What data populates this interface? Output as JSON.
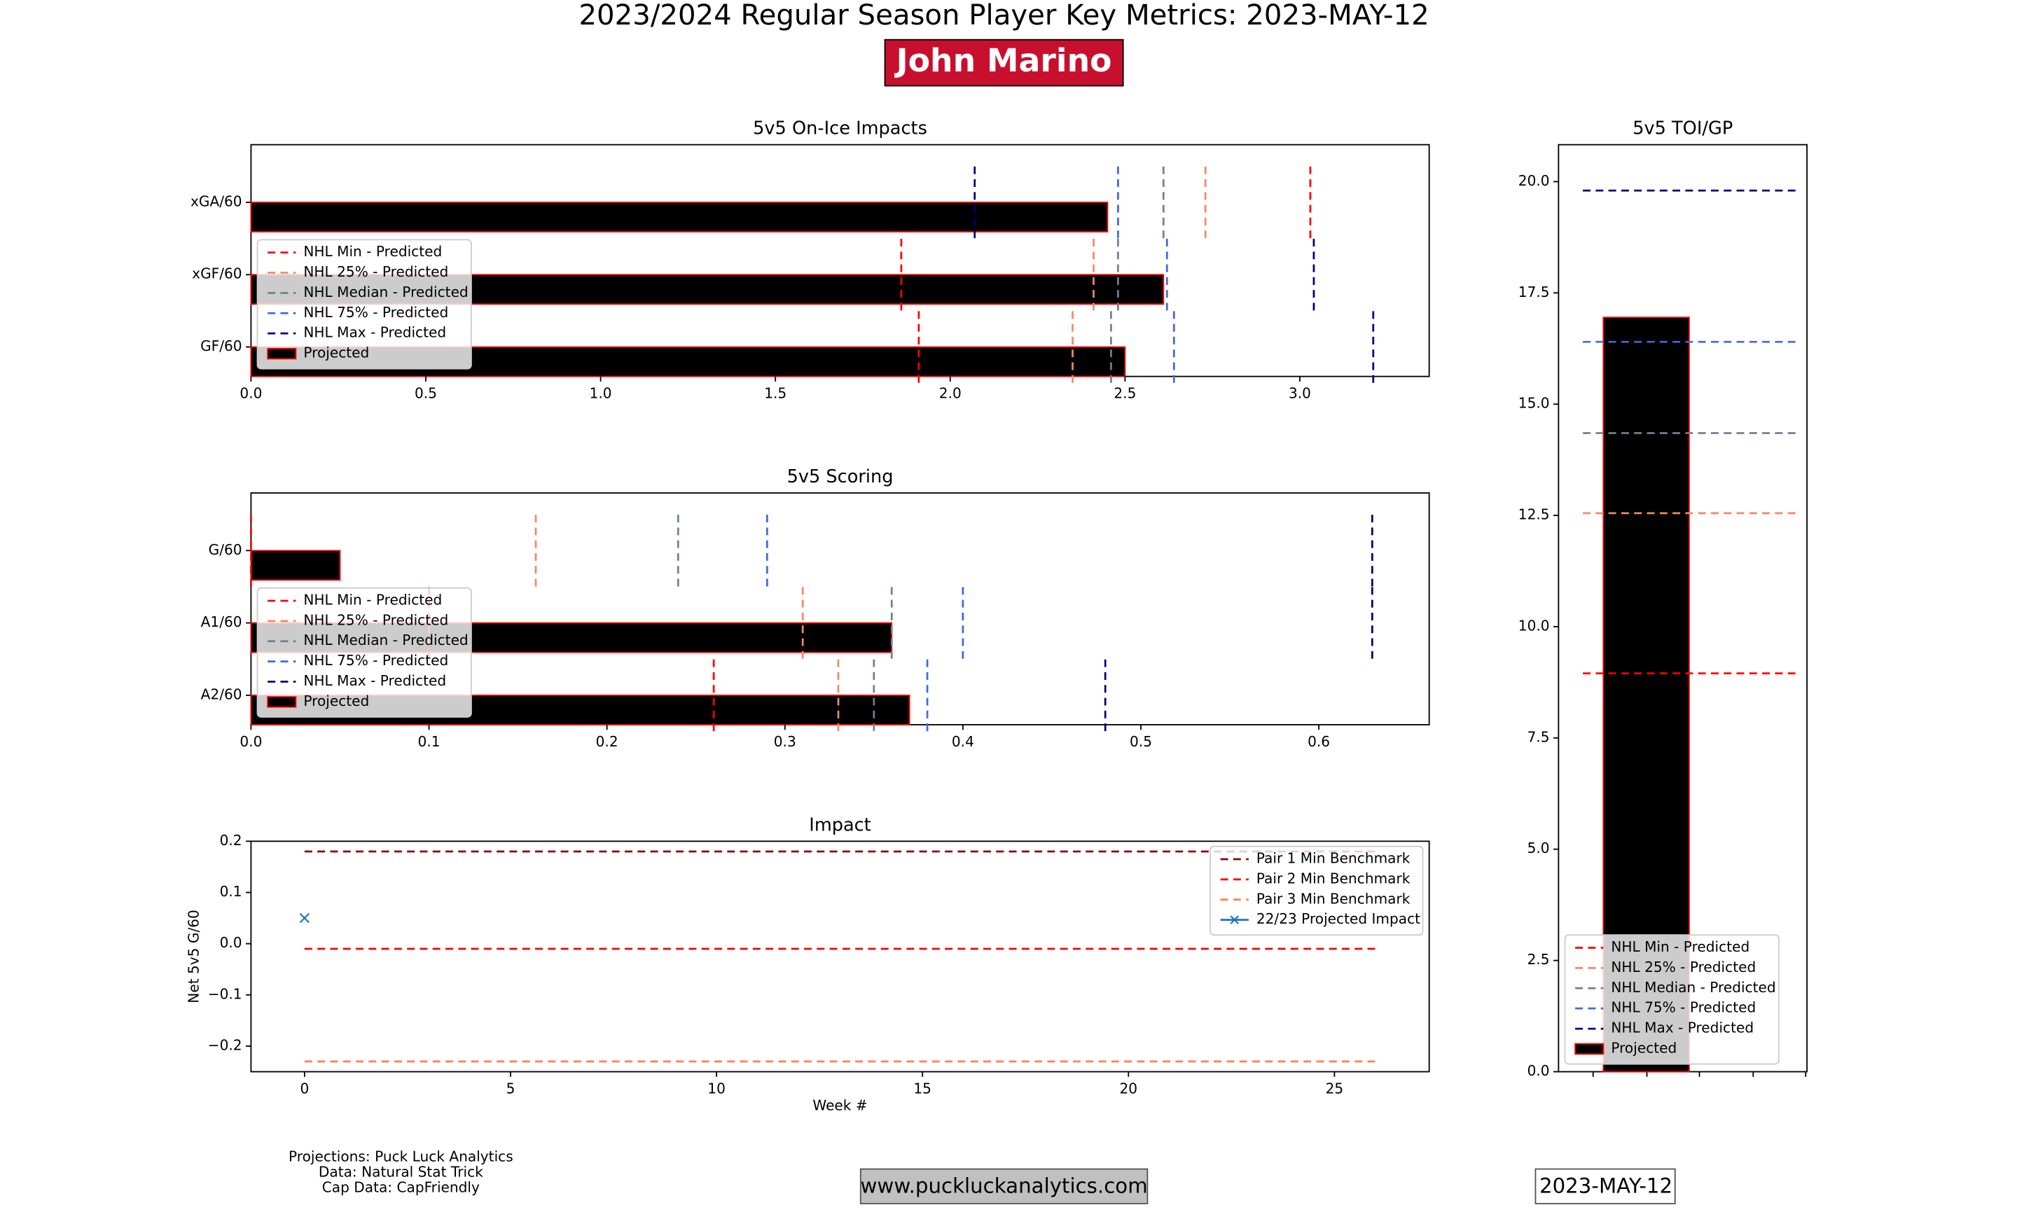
{
  "header": {
    "title": "2023/2024 Regular Season Player Key Metrics: 2023-MAY-12",
    "player": "John Marino"
  },
  "footer": {
    "credits": [
      "Projections: Puck Luck Analytics",
      "Data: Natural Stat Trick",
      "Cap Data: CapFriendly"
    ],
    "website": "www.puckluckanalytics.com",
    "date": "2023-MAY-12"
  },
  "chart_data": [
    {
      "type": "hbar",
      "title": "5v5 On-Ice Impacts",
      "categories": [
        "xGA/60",
        "xGF/60",
        "GF/60"
      ],
      "xlim": [
        0,
        3.37
      ],
      "xticks": [
        {
          "value": 0,
          "label": "0.0"
        },
        0.5,
        {
          "value": 1,
          "label": "1.0"
        },
        1.5,
        {
          "value": 2,
          "label": "2.0"
        },
        2.5,
        {
          "value": 3,
          "label": "3.0"
        }
      ],
      "legend": "lower left",
      "series": [
        {
          "name": "NHL Min - Predicted",
          "color": "#ff0000",
          "mark": "dashed-line",
          "values": [
            3.03,
            1.86,
            1.91
          ]
        },
        {
          "name": "NHL 25% - Predicted",
          "color": "#f08a66",
          "mark": "dashed-line",
          "values": [
            2.73,
            2.41,
            2.35
          ]
        },
        {
          "name": "NHL Median - Predicted",
          "color": "#708090",
          "mark": "dashed-line",
          "values": [
            2.61,
            2.48,
            2.46
          ]
        },
        {
          "name": "NHL 75% - Predicted",
          "color": "#4169e1",
          "mark": "dashed-line",
          "values": [
            2.48,
            2.62,
            2.64
          ]
        },
        {
          "name": "NHL Max - Predicted",
          "color": "#000080",
          "mark": "dashed-line",
          "values": [
            2.07,
            3.04,
            3.21
          ]
        },
        {
          "name": "Projected",
          "color": "#000000",
          "edge": "#ff0000",
          "mark": "bar",
          "values": [
            2.45,
            2.61,
            2.5
          ]
        }
      ]
    },
    {
      "type": "hbar",
      "title": "5v5 Scoring",
      "categories": [
        "G/60",
        "A1/60",
        "A2/60"
      ],
      "xlim": [
        0,
        0.662
      ],
      "xticks": [
        {
          "value": 0,
          "label": "0.0"
        },
        0.1,
        0.2,
        0.3,
        0.4,
        0.5,
        0.6
      ],
      "legend": "lower left",
      "series": [
        {
          "name": "NHL Min - Predicted",
          "color": "#ff0000",
          "mark": "dashed-line",
          "values": [
            0,
            0.1,
            0.26
          ]
        },
        {
          "name": "NHL 25% - Predicted",
          "color": "#f08a66",
          "mark": "dashed-line",
          "values": [
            0.16,
            0.31,
            0.33
          ]
        },
        {
          "name": "NHL Median - Predicted",
          "color": "#708090",
          "mark": "dashed-line",
          "values": [
            0.24,
            0.36,
            0.35
          ]
        },
        {
          "name": "NHL 75% - Predicted",
          "color": "#4169e1",
          "mark": "dashed-line",
          "values": [
            0.29,
            0.4,
            0.38
          ]
        },
        {
          "name": "NHL Max - Predicted",
          "color": "#000080",
          "mark": "dashed-line",
          "values": [
            0.63,
            0.63,
            0.48
          ]
        },
        {
          "name": "Projected",
          "color": "#000000",
          "edge": "#ff0000",
          "mark": "bar",
          "values": [
            0.05,
            0.36,
            0.37
          ]
        }
      ]
    },
    {
      "type": "line",
      "title": "Impact",
      "x_label": "Week #",
      "y_label": "Net 5v5 G/60",
      "xlim": [
        -1.3,
        27.3
      ],
      "xticks": [
        0,
        5,
        10,
        15,
        20,
        25
      ],
      "ylim": [
        -0.25,
        0.2
      ],
      "yticks": [
        {
          "value": -0.2,
          "label": "−0.2"
        },
        {
          "value": -0.1,
          "label": "−0.1"
        },
        {
          "value": 0,
          "label": "0.0"
        },
        0.1,
        0.2
      ],
      "legend": "upper right",
      "series": [
        {
          "name": "Pair 1 Min Benchmark",
          "color": "#8b0000",
          "mark": "dashed-line",
          "x": [
            0,
            26
          ],
          "values": [
            0.18,
            0.18
          ]
        },
        {
          "name": "Pair 2 Min Benchmark",
          "color": "#ff0000",
          "mark": "dashed-line",
          "x": [
            0,
            26
          ],
          "values": [
            -0.01,
            -0.01
          ]
        },
        {
          "name": "Pair 3 Min Benchmark",
          "color": "#ff7f50",
          "mark": "dashed-line",
          "x": [
            0,
            26
          ],
          "values": [
            -0.23,
            -0.23
          ]
        },
        {
          "name": "22/23 Projected Impact",
          "color": "#1f77b4",
          "mark": "x",
          "x": [
            0
          ],
          "values": [
            0.05
          ]
        }
      ]
    },
    {
      "type": "bar",
      "title": "5v5 TOI/GP",
      "ylim": [
        0,
        20.83
      ],
      "yticks": [
        {
          "value": 0,
          "label": "0.0"
        },
        2.5,
        {
          "value": 5,
          "label": "5.0"
        },
        7.5,
        {
          "value": 10,
          "label": "10.0"
        },
        12.5,
        {
          "value": 15,
          "label": "15.0"
        },
        17.5,
        {
          "value": 20,
          "label": "20.0"
        }
      ],
      "legend": "lower left",
      "series": [
        {
          "name": "NHL Min - Predicted",
          "color": "#ff0000",
          "mark": "dashed-line",
          "values": [
            8.95
          ]
        },
        {
          "name": "NHL 25% - Predicted",
          "color": "#f08a66",
          "mark": "dashed-line",
          "values": [
            12.55
          ]
        },
        {
          "name": "NHL Median - Predicted",
          "color": "#708090",
          "mark": "dashed-line",
          "values": [
            14.35
          ]
        },
        {
          "name": "NHL 75% - Predicted",
          "color": "#4169e1",
          "mark": "dashed-line",
          "values": [
            16.4
          ]
        },
        {
          "name": "NHL Max - Predicted",
          "color": "#000080",
          "mark": "dashed-line",
          "values": [
            19.8
          ]
        },
        {
          "name": "Projected",
          "color": "#000000",
          "edge": "#ff0000",
          "mark": "bar",
          "values": [
            16.95
          ]
        }
      ]
    }
  ]
}
